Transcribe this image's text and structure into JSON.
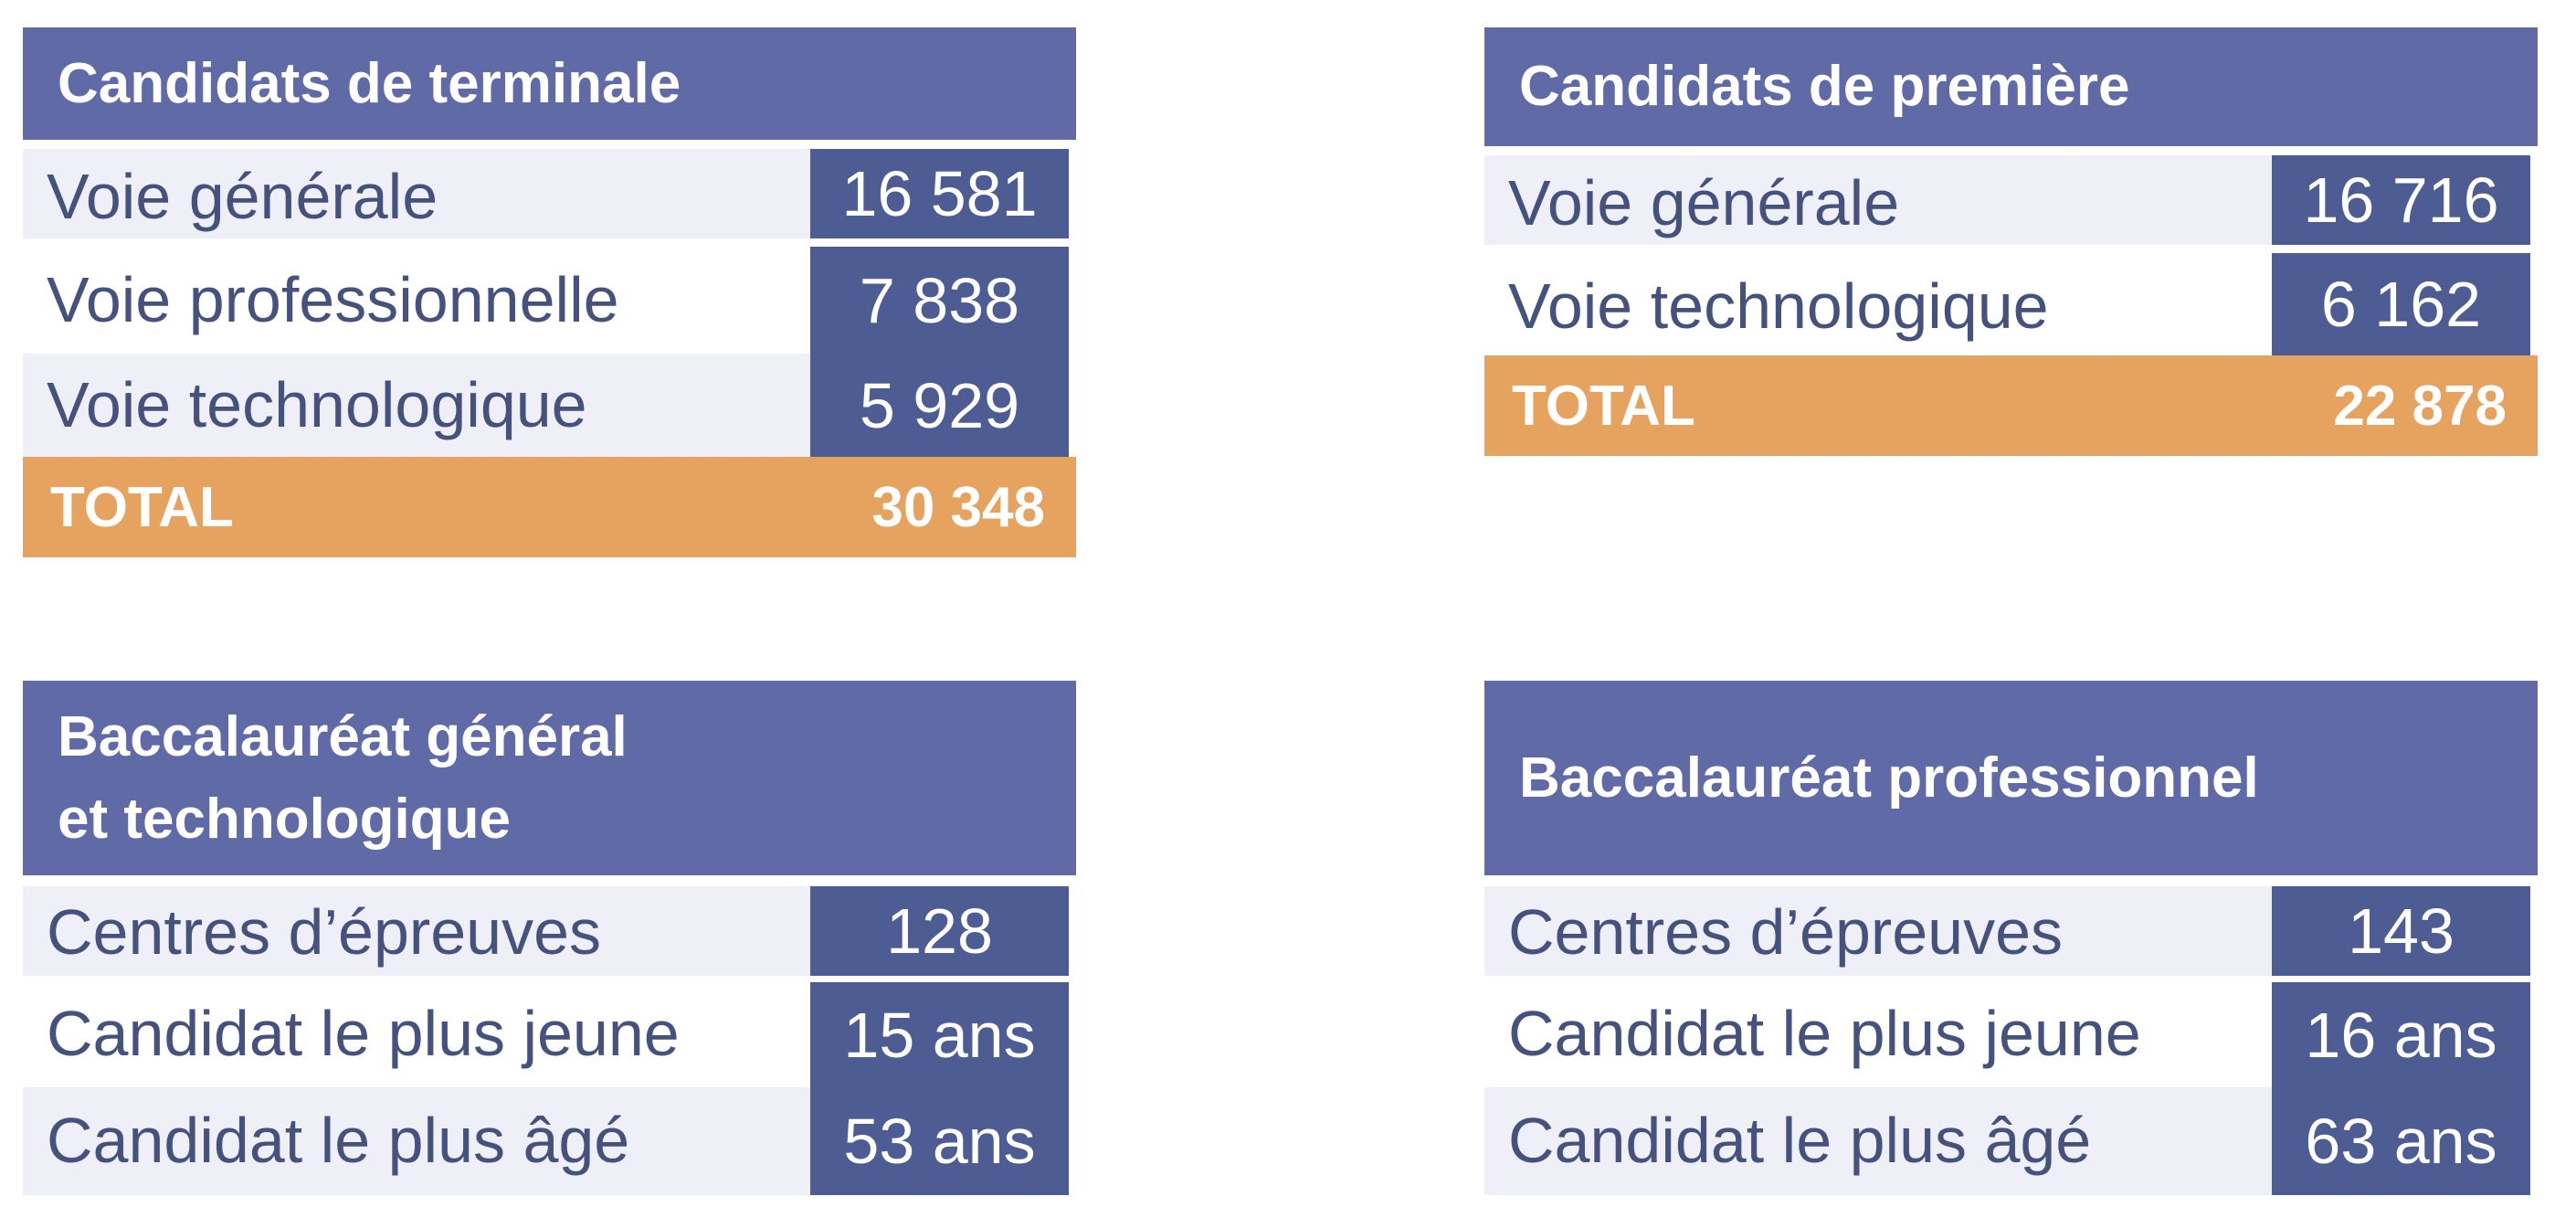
{
  "colors": {
    "header": "#5f6aa6",
    "value": "#4d5c92",
    "total": "#e5a35f",
    "band": "#eff0f7",
    "text": "#45527e"
  },
  "terminale": {
    "title": "Candidats de terminale",
    "rows": [
      {
        "label": "Voie générale",
        "value": "16 581"
      },
      {
        "label": "Voie professionnelle",
        "value": "7 838"
      },
      {
        "label": "Voie technologique",
        "value": "5 929"
      }
    ],
    "total_label": "TOTAL",
    "total_value": "30 348"
  },
  "premiere": {
    "title": "Candidats de première",
    "rows": [
      {
        "label": "Voie générale",
        "value": "16 716"
      },
      {
        "label": "Voie technologique",
        "value": "6 162"
      }
    ],
    "total_label": "TOTAL",
    "total_value": "22 878"
  },
  "bac_gt": {
    "title_line1": "Baccalauréat général",
    "title_line2": "et technologique",
    "rows": [
      {
        "label": "Centres d’épreuves",
        "value": "128"
      },
      {
        "label": "Candidat le plus jeune",
        "value": "15 ans"
      },
      {
        "label": "Candidat le plus âgé",
        "value": "53 ans"
      }
    ]
  },
  "bac_pro": {
    "title": "Baccalauréat professionnel",
    "rows": [
      {
        "label": "Centres d’épreuves",
        "value": "143"
      },
      {
        "label": "Candidat le plus jeune",
        "value": "16 ans"
      },
      {
        "label": "Candidat le plus âgé",
        "value": "63 ans"
      }
    ]
  }
}
